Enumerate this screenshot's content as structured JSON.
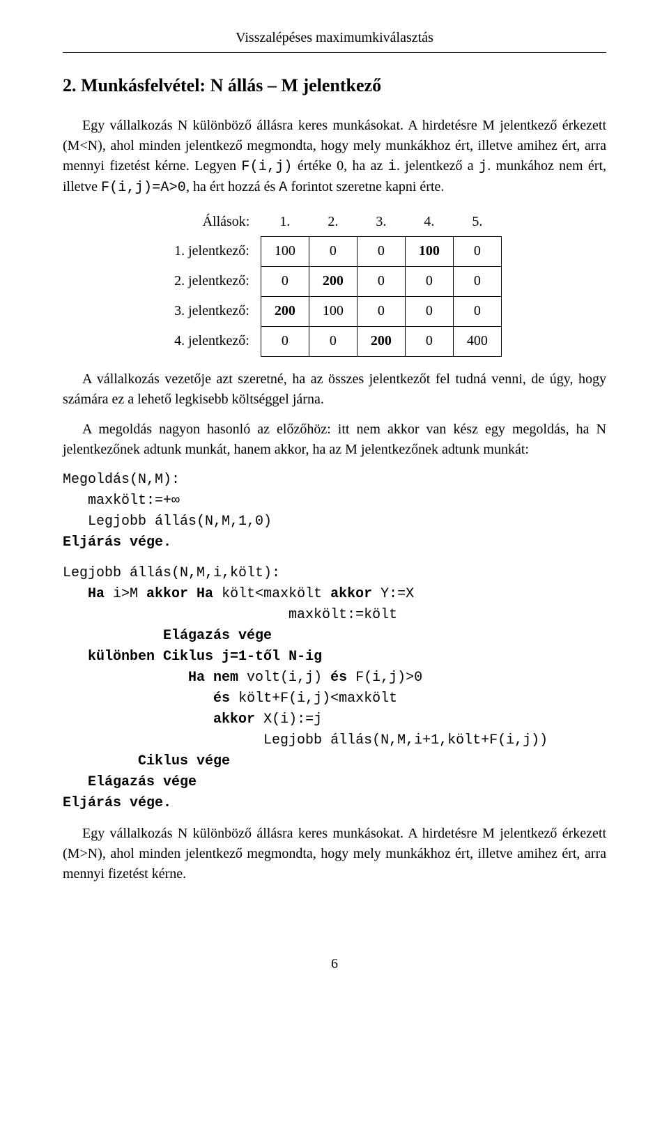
{
  "runningHead": "Visszalépéses maximumkiválasztás",
  "sectionTitle": "2. Munkásfelvétel: N állás – M jelentkező",
  "paragraphs": {
    "p1a": "Egy vállalkozás N különböző állásra keres munkásokat. A hirdetésre M jelentkező érkezett (M<N), ahol minden jelentkező megmondta, hogy mely munkákhoz ért, illetve amihez ért, arra mennyi fizetést kérne. Legyen ",
    "p1code1": "F(i,j)",
    "p1b": " értéke 0, ha az ",
    "p1code2": "i",
    "p1c": ". jelentkező a ",
    "p1code3": "j",
    "p1d": ". munkához nem ért, illetve ",
    "p1code4": "F(i,j)=A>0",
    "p1e": ", ha ért hozzá és ",
    "p1code5": "A",
    "p1f": " forintot szeretne kapni érte.",
    "p2": "A vállalkozás vezetője azt szeretné, ha az összes jelentkezőt fel tudná venni, de úgy, hogy számára ez a lehető legkisebb költséggel járna.",
    "p3": "A megoldás nagyon hasonló az előzőhöz: itt nem akkor van kész egy megoldás, ha N jelentkezőnek adtunk munkát, hanem akkor, ha az M jelentkezőnek adtunk munkát:",
    "p4": "Egy vállalkozás N különböző állásra keres munkásokat. A hirdetésre M jelentkező érkezett (M>N), ahol minden jelentkező megmondta, hogy mely munkákhoz ért, illetve amihez ért, arra mennyi fizetést kérne."
  },
  "table": {
    "headerLabel": "Állások:",
    "columns": [
      "1.",
      "2.",
      "3.",
      "4.",
      "5."
    ],
    "rows": [
      {
        "label": "1. jelentkező:",
        "cells": [
          {
            "v": "100",
            "bold": false
          },
          {
            "v": "0",
            "bold": false
          },
          {
            "v": "0",
            "bold": false
          },
          {
            "v": "100",
            "bold": true
          },
          {
            "v": "0",
            "bold": false
          }
        ]
      },
      {
        "label": "2. jelentkező:",
        "cells": [
          {
            "v": "0",
            "bold": false
          },
          {
            "v": "200",
            "bold": true
          },
          {
            "v": "0",
            "bold": false
          },
          {
            "v": "0",
            "bold": false
          },
          {
            "v": "0",
            "bold": false
          }
        ]
      },
      {
        "label": "3. jelentkező:",
        "cells": [
          {
            "v": "200",
            "bold": true
          },
          {
            "v": "100",
            "bold": false
          },
          {
            "v": "0",
            "bold": false
          },
          {
            "v": "0",
            "bold": false
          },
          {
            "v": "0",
            "bold": false
          }
        ]
      },
      {
        "label": "4. jelentkező:",
        "cells": [
          {
            "v": "0",
            "bold": false
          },
          {
            "v": "0",
            "bold": false
          },
          {
            "v": "200",
            "bold": true
          },
          {
            "v": "0",
            "bold": false
          },
          {
            "v": "400",
            "bold": false
          }
        ]
      }
    ]
  },
  "codeBlock1": [
    {
      "indent": 0,
      "segs": [
        {
          "t": "Megoldás(N,M):",
          "b": false
        }
      ]
    },
    {
      "indent": 1,
      "segs": [
        {
          "t": "maxkölt:=+∞",
          "b": false
        }
      ]
    },
    {
      "indent": 1,
      "segs": [
        {
          "t": "Legjobb állás(N,M,1,0)",
          "b": false
        }
      ]
    },
    {
      "indent": 0,
      "segs": [
        {
          "t": "Eljárás vége.",
          "b": true
        }
      ]
    }
  ],
  "codeBlock2": [
    {
      "indent": 0,
      "segs": [
        {
          "t": "Legjobb állás(N,M,i,költ):",
          "b": false
        }
      ]
    },
    {
      "indent": 1,
      "segs": [
        {
          "t": "Ha ",
          "b": true
        },
        {
          "t": "i>M ",
          "b": false
        },
        {
          "t": "akkor Ha ",
          "b": true
        },
        {
          "t": "költ<maxkölt ",
          "b": false
        },
        {
          "t": "akkor ",
          "b": true
        },
        {
          "t": "Y:=X",
          "b": false
        }
      ]
    },
    {
      "indent": 9,
      "segs": [
        {
          "t": "maxkölt:=költ",
          "b": false
        }
      ]
    },
    {
      "indent": 4,
      "segs": [
        {
          "t": "Elágazás vége",
          "b": true
        }
      ]
    },
    {
      "indent": 1,
      "segs": [
        {
          "t": "különben Ciklus j=1-től N-ig",
          "b": true
        }
      ]
    },
    {
      "indent": 5,
      "segs": [
        {
          "t": "Ha nem ",
          "b": true
        },
        {
          "t": "volt(i,j) ",
          "b": false
        },
        {
          "t": "és ",
          "b": true
        },
        {
          "t": "F(i,j)>0",
          "b": false
        }
      ]
    },
    {
      "indent": 6,
      "segs": [
        {
          "t": "és ",
          "b": true
        },
        {
          "t": "költ+F(i,j)<maxkölt",
          "b": false
        }
      ]
    },
    {
      "indent": 6,
      "segs": [
        {
          "t": "akkor ",
          "b": true
        },
        {
          "t": "X(i):=j",
          "b": false
        }
      ]
    },
    {
      "indent": 8,
      "segs": [
        {
          "t": "Legjobb állás(N,M,i+1,költ+F(i,j))",
          "b": false
        }
      ]
    },
    {
      "indent": 3,
      "segs": [
        {
          "t": "Ciklus vége",
          "b": true
        }
      ]
    },
    {
      "indent": 1,
      "segs": [
        {
          "t": "Elágazás vége",
          "b": true
        }
      ]
    },
    {
      "indent": 0,
      "segs": [
        {
          "t": "Eljárás vége.",
          "b": true
        }
      ]
    }
  ],
  "pageNumber": "6",
  "style": {
    "colors": {
      "text": "#000000",
      "background": "#ffffff",
      "tableBorder": "#000000",
      "hrule": "#000000"
    },
    "fontFamilyBody": "Times New Roman",
    "fontFamilyCode": "Courier New",
    "fontSizeBody": 20,
    "fontSizeTitle": 26,
    "pageWidth": 960,
    "pageHeight": 1613,
    "indentUnit": "   "
  }
}
